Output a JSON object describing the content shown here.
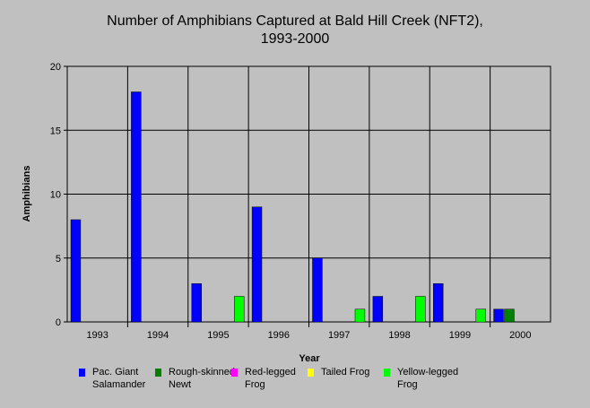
{
  "chart_data": {
    "type": "bar",
    "title": "Number of Amphibians Captured at Bald Hill Creek (NFT2),\n1993-2000",
    "xlabel": "Year",
    "ylabel": "Amphibians",
    "ylim": [
      0,
      20
    ],
    "yticks": [
      "0",
      "5",
      "10",
      "15",
      "20"
    ],
    "grid": true,
    "legend_position": "bottom",
    "categories": [
      "1993",
      "1994",
      "1995",
      "1996",
      "1997",
      "1998",
      "1999",
      "2000"
    ],
    "series": [
      {
        "name": "Pac. Giant\nSalamander",
        "color": "#0000ff",
        "values": [
          8,
          18,
          3,
          9,
          5,
          2,
          3,
          1
        ]
      },
      {
        "name": "Rough-skinned\nNewt",
        "color": "#008000",
        "values": [
          0,
          0,
          0,
          0,
          0,
          0,
          0,
          1
        ]
      },
      {
        "name": "Red-legged\nFrog",
        "color": "#ff00ff",
        "values": [
          0,
          0,
          0,
          0,
          0,
          0,
          0,
          0
        ]
      },
      {
        "name": "Tailed Frog",
        "color": "#ffff00",
        "values": [
          0,
          0,
          0,
          0,
          0,
          0,
          0,
          0
        ]
      },
      {
        "name": "Yellow-legged\nFrog",
        "color": "#00ff00",
        "values": [
          0,
          0,
          2,
          0,
          1,
          2,
          1,
          0
        ]
      }
    ]
  }
}
